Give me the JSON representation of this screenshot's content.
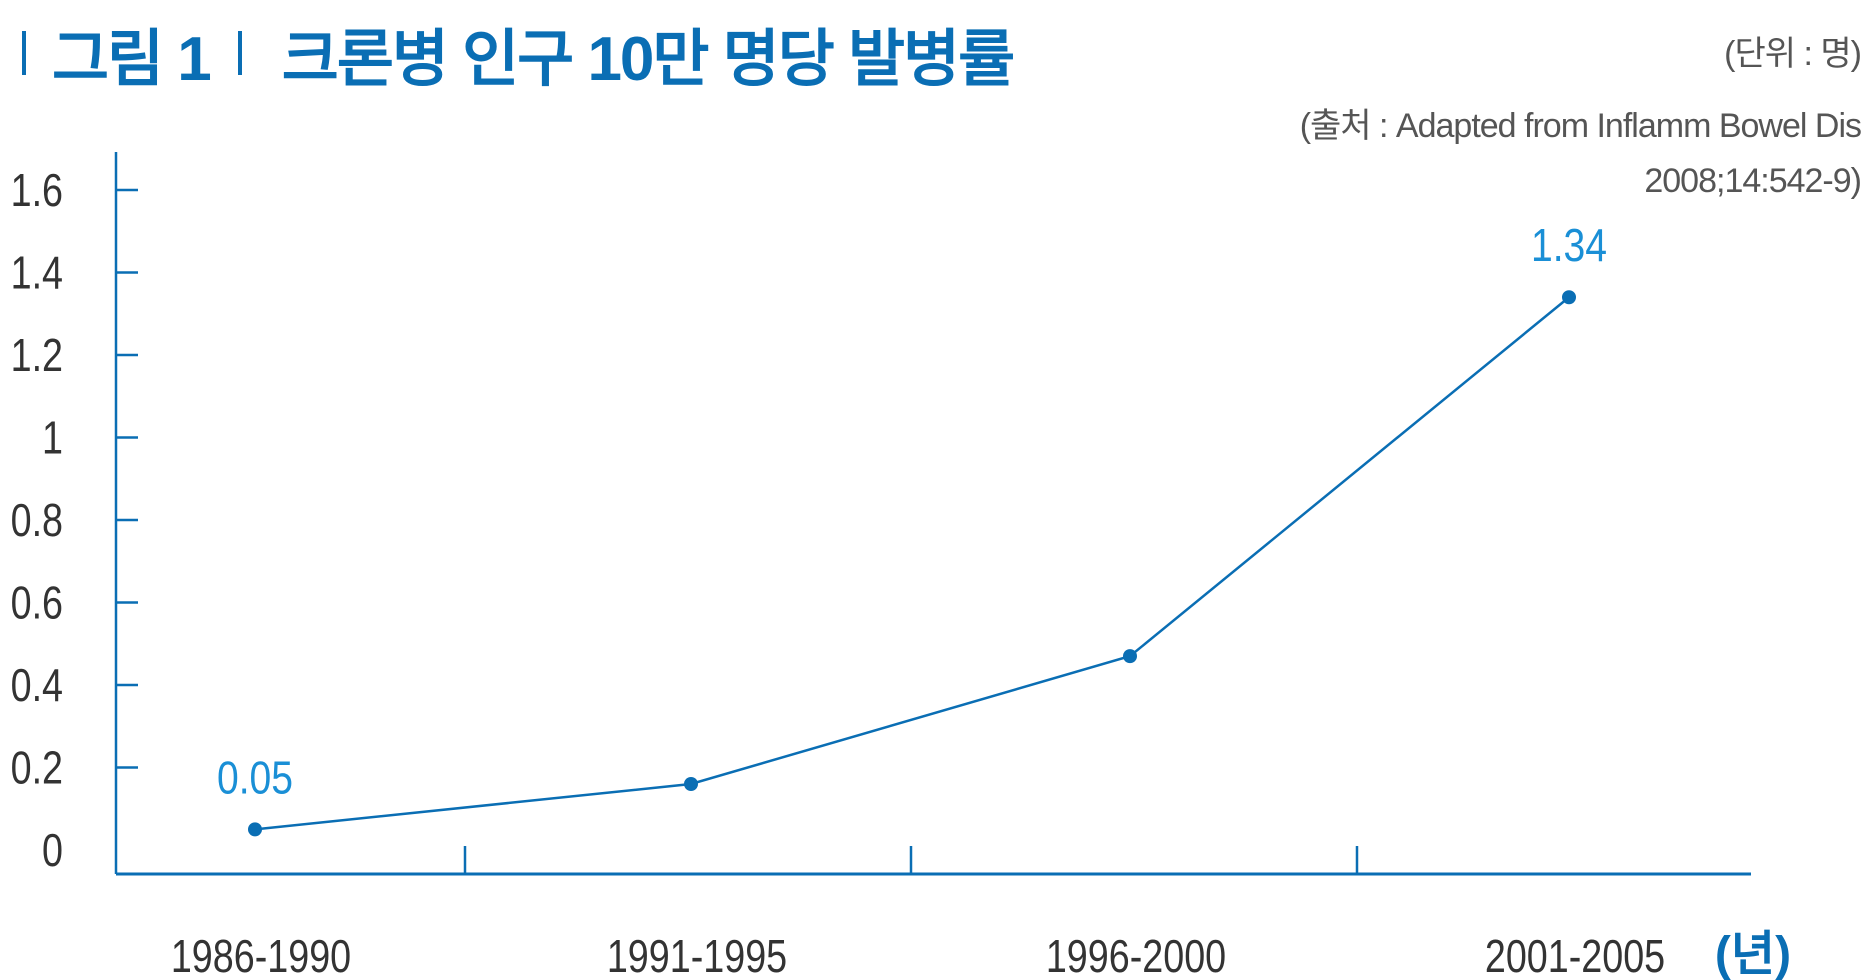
{
  "header": {
    "figure_label": "그림 1",
    "title": "크론병 인구 10만 명당 발병률",
    "unit_note": "(단위 : 명)",
    "source_line1": "(출처 : Adapted from Inflamm Bowel Dis",
    "source_line2": "2008;14:542-9)"
  },
  "colors": {
    "accent": "#0a6eb4",
    "label": "#1a8fd6",
    "text": "#333333"
  },
  "chart_data": {
    "type": "line",
    "title": "크론병 인구 10만 명당 발병률",
    "xlabel": "(년)",
    "ylabel": "",
    "categories": [
      "1986-1990",
      "1991-1995",
      "1996-2000",
      "2001-2005"
    ],
    "values": [
      0.05,
      0.16,
      0.47,
      1.34
    ],
    "data_labels": [
      "0.05",
      "",
      "",
      "1.34"
    ],
    "ylim": [
      0,
      1.6
    ],
    "yticks": [
      "0",
      "0.2",
      "0.4",
      "0.6",
      "0.8",
      "1",
      "1.2",
      "1.4",
      "1.6"
    ],
    "grid": false
  }
}
